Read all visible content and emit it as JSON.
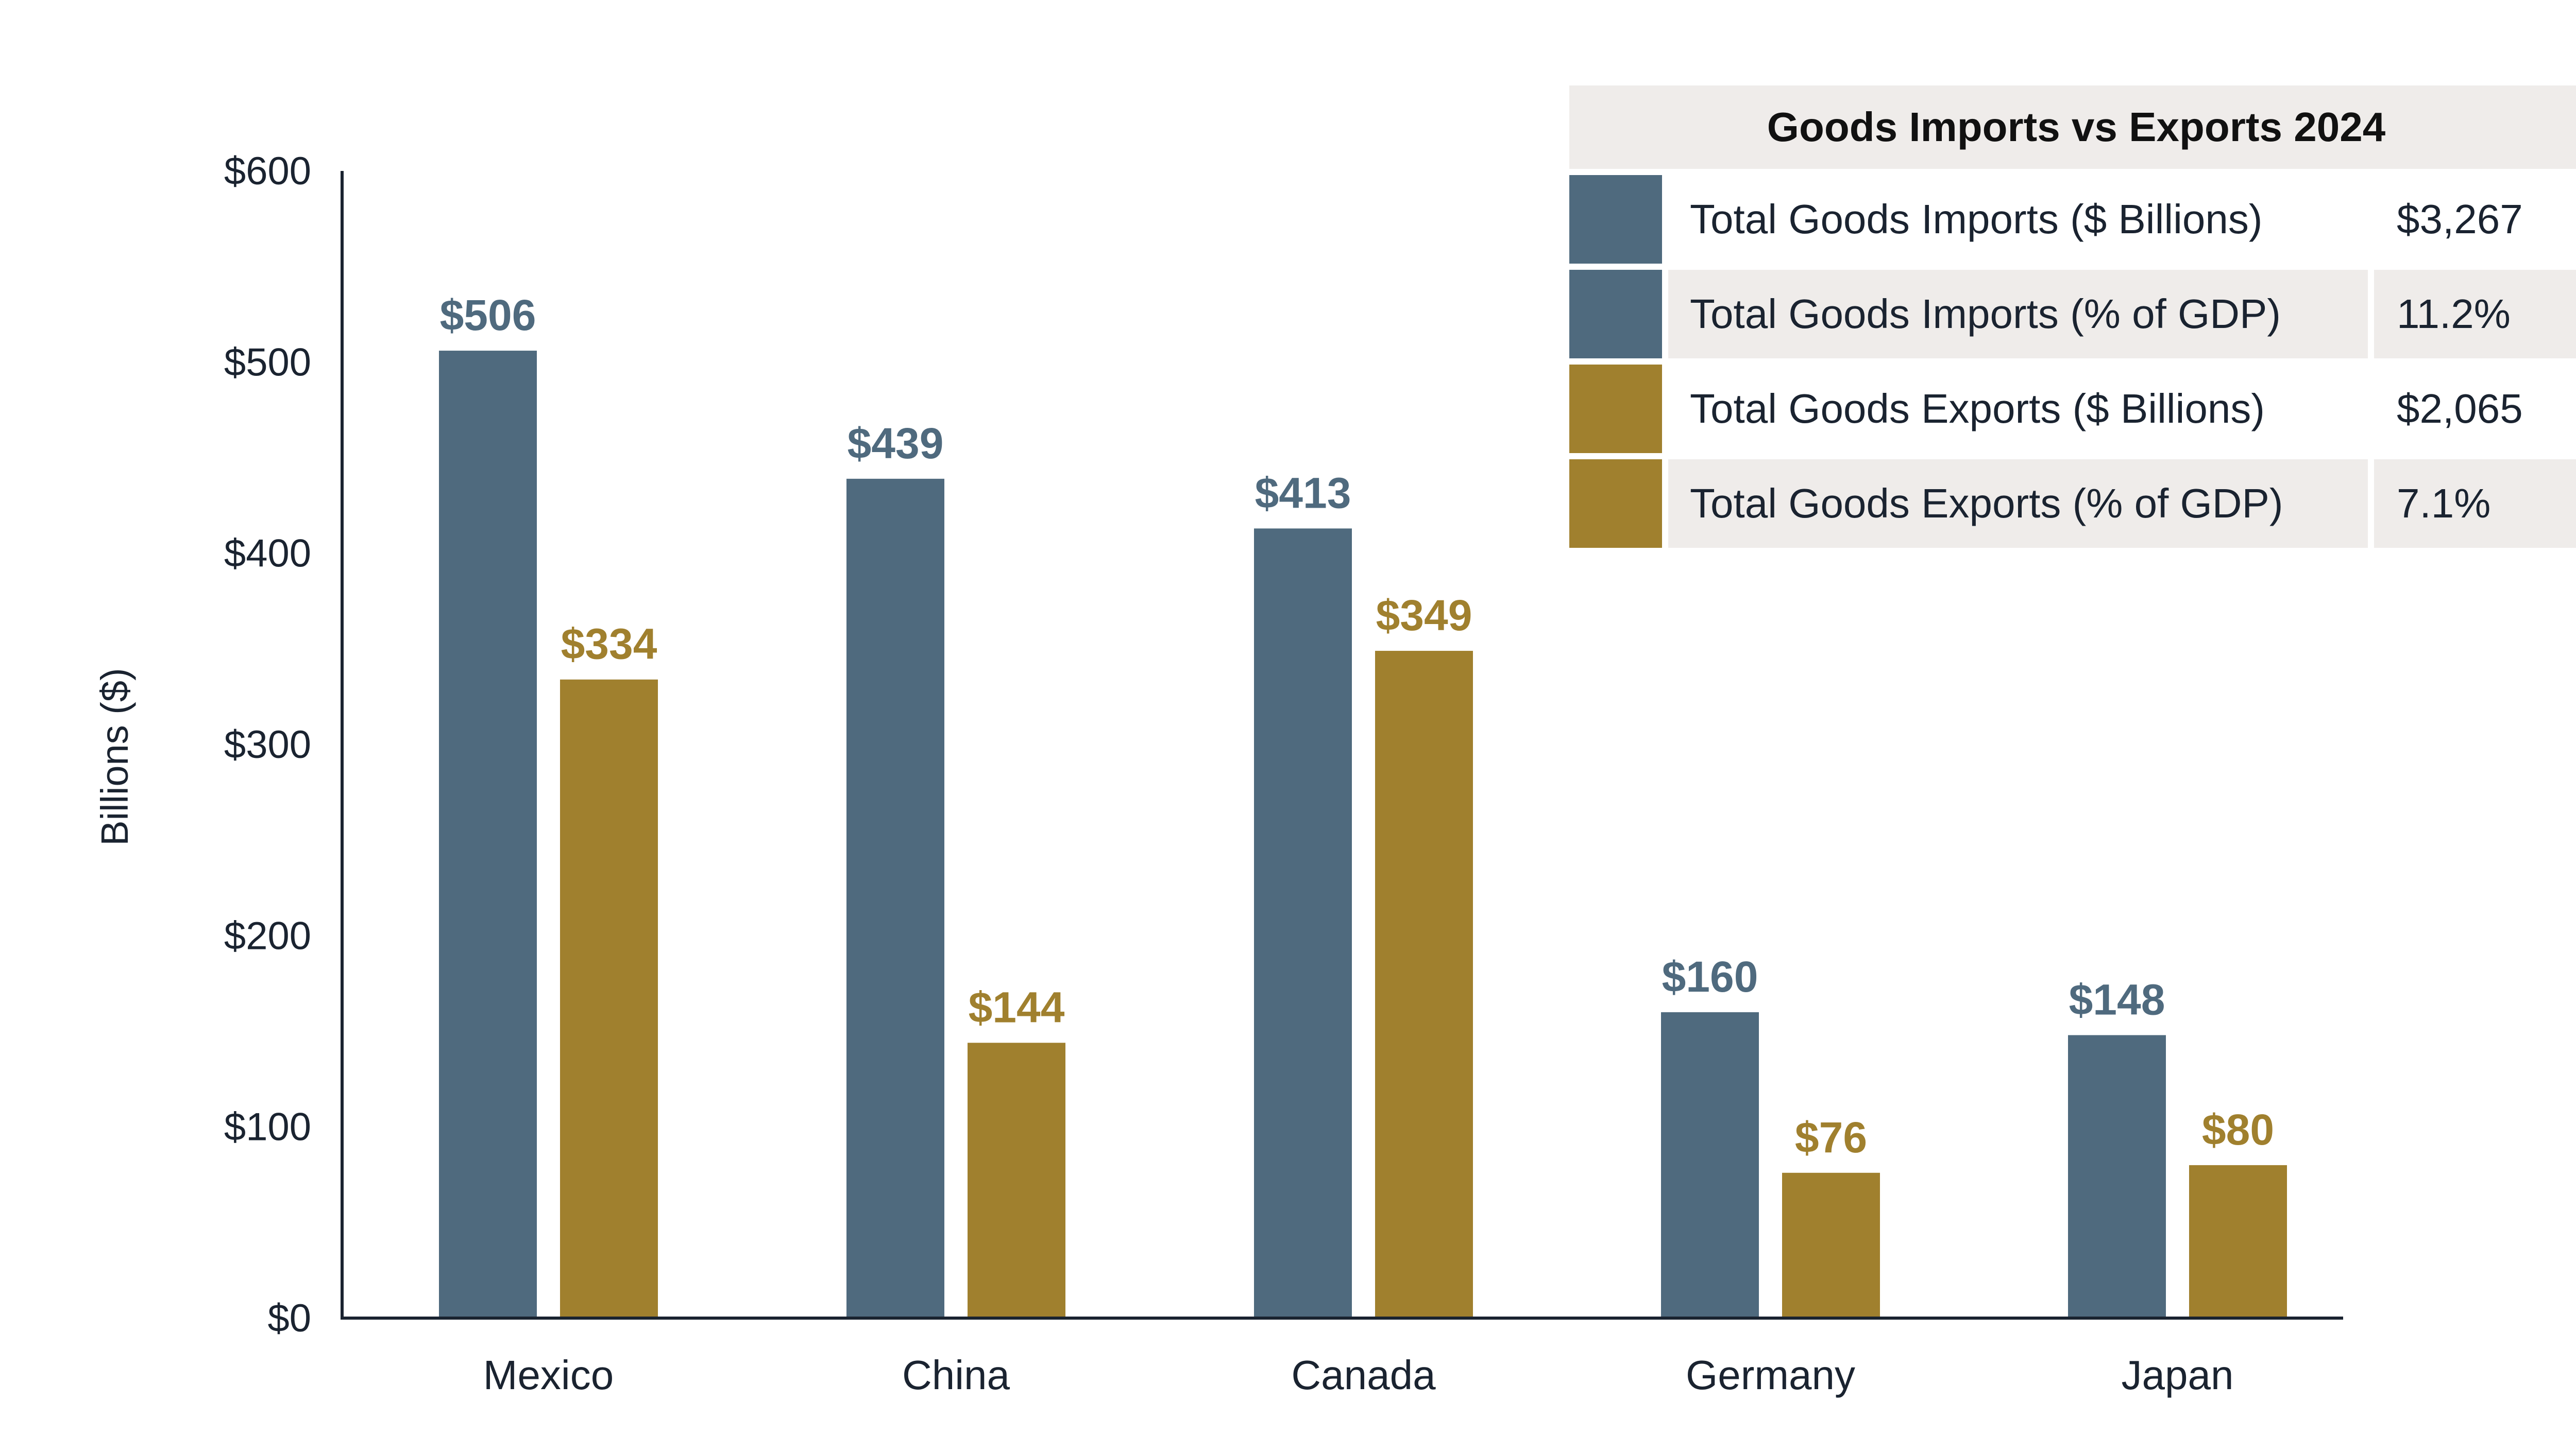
{
  "colors": {
    "imports": "#4f6a7e",
    "exports": "#a0802e",
    "axis": "#1a2330"
  },
  "chart_data": {
    "type": "bar",
    "title": "",
    "xlabel": "",
    "ylabel": "Billions ($)",
    "ylim": [
      0,
      600
    ],
    "yticks": [
      0,
      100,
      200,
      300,
      400,
      500,
      600
    ],
    "ytick_labels": [
      "$0",
      "$100",
      "$200",
      "$300",
      "$400",
      "$500",
      "$600"
    ],
    "categories": [
      "Mexico",
      "China",
      "Canada",
      "Germany",
      "Japan"
    ],
    "series": [
      {
        "name": "Imports",
        "values": [
          506,
          439,
          413,
          160,
          148
        ],
        "labels": [
          "$506",
          "$439",
          "$413",
          "$160",
          "$148"
        ]
      },
      {
        "name": "Exports",
        "values": [
          334,
          144,
          349,
          76,
          80
        ],
        "labels": [
          "$334",
          "$144",
          "$349",
          "$76",
          "$80"
        ]
      }
    ]
  },
  "legend": {
    "title": "Goods Imports vs Exports 2024",
    "rows": [
      {
        "label": "Total Goods Imports ($ Billions)",
        "value": "$3,267",
        "series": "imports"
      },
      {
        "label": "Total Goods Imports (% of GDP)",
        "value": "11.2%",
        "series": "imports"
      },
      {
        "label": "Total Goods Exports ($ Billions)",
        "value": "$2,065",
        "series": "exports"
      },
      {
        "label": "Total Goods Exports (% of GDP)",
        "value": "7.1%",
        "series": "exports"
      }
    ]
  }
}
